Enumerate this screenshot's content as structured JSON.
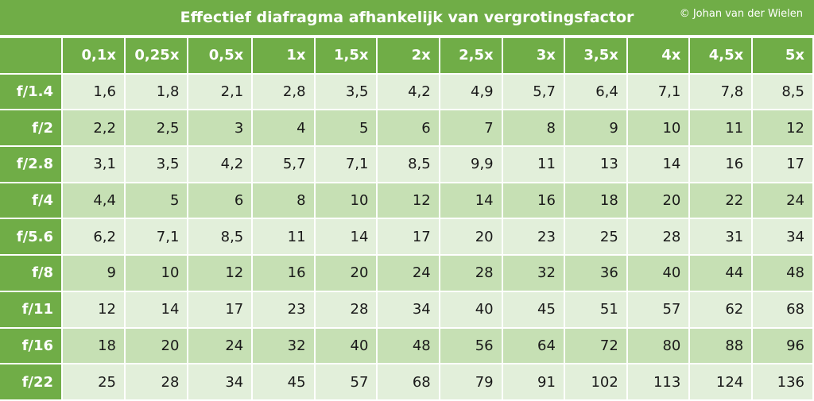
{
  "title": "Effectief diafragma afhankelijk van vergrotingsfactor",
  "credit": "© Johan van der Wielen",
  "colors": {
    "header_green": "#70ad47",
    "row_light": "#e2efda",
    "row_dark": "#c6e0b4",
    "header_text": "#ffffff"
  },
  "chart_data": {
    "type": "table",
    "title": "Effectief diafragma afhankelijk van vergrotingsfactor",
    "columns": [
      "0,1x",
      "0,25x",
      "0,5x",
      "1x",
      "1,5x",
      "2x",
      "2,5x",
      "3x",
      "3,5x",
      "4x",
      "4,5x",
      "5x"
    ],
    "rows": [
      {
        "label": "f/1.4",
        "values": [
          "1,6",
          "1,8",
          "2,1",
          "2,8",
          "3,5",
          "4,2",
          "4,9",
          "5,7",
          "6,4",
          "7,1",
          "7,8",
          "8,5"
        ]
      },
      {
        "label": "f/2",
        "values": [
          "2,2",
          "2,5",
          "3",
          "4",
          "5",
          "6",
          "7",
          "8",
          "9",
          "10",
          "11",
          "12"
        ]
      },
      {
        "label": "f/2.8",
        "values": [
          "3,1",
          "3,5",
          "4,2",
          "5,7",
          "7,1",
          "8,5",
          "9,9",
          "11",
          "13",
          "14",
          "16",
          "17"
        ]
      },
      {
        "label": "f/4",
        "values": [
          "4,4",
          "5",
          "6",
          "8",
          "10",
          "12",
          "14",
          "16",
          "18",
          "20",
          "22",
          "24"
        ]
      },
      {
        "label": "f/5.6",
        "values": [
          "6,2",
          "7,1",
          "8,5",
          "11",
          "14",
          "17",
          "20",
          "23",
          "25",
          "28",
          "31",
          "34"
        ]
      },
      {
        "label": "f/8",
        "values": [
          "9",
          "10",
          "12",
          "16",
          "20",
          "24",
          "28",
          "32",
          "36",
          "40",
          "44",
          "48"
        ]
      },
      {
        "label": "f/11",
        "values": [
          "12",
          "14",
          "17",
          "23",
          "28",
          "34",
          "40",
          "45",
          "51",
          "57",
          "62",
          "68"
        ]
      },
      {
        "label": "f/16",
        "values": [
          "18",
          "20",
          "24",
          "32",
          "40",
          "48",
          "56",
          "64",
          "72",
          "80",
          "88",
          "96"
        ]
      },
      {
        "label": "f/22",
        "values": [
          "25",
          "28",
          "34",
          "45",
          "57",
          "68",
          "79",
          "91",
          "102",
          "113",
          "124",
          "136"
        ]
      }
    ]
  }
}
